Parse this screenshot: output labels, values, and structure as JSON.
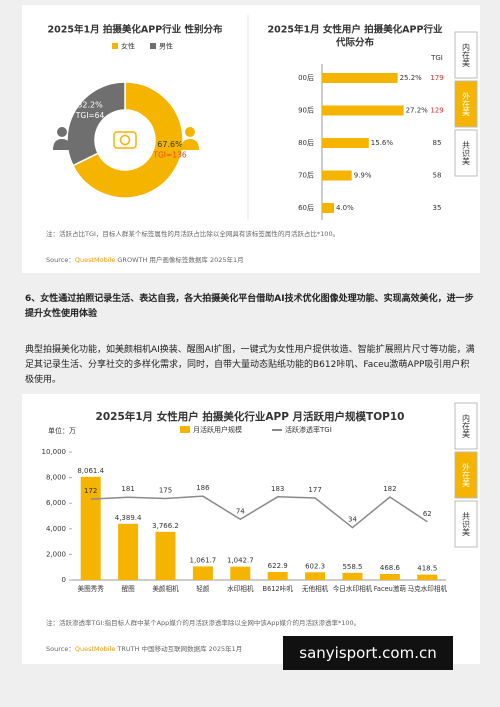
{
  "chart_data": [
    {
      "type": "pie",
      "title": "2025年1月  拍摄美化APP行业  性别分布",
      "categories": [
        "女性",
        "男性"
      ],
      "values": [
        67.6,
        32.2
      ],
      "value_labels": [
        "67.6%",
        "32.2%"
      ],
      "annotations": [
        "TGI=136",
        "TGI=64"
      ],
      "colors": [
        "#f5b400",
        "#6f6f6f"
      ],
      "note": "注：活跃占比TGI，目标人群某个标签属性的月活跃占比除以全网具有该标签属性的月活跃占比*100。",
      "source": {
        "label": "Source：",
        "brand": "QuestMobile",
        "text": " GROWTH 用户画像标签数据库 2025年1月"
      }
    },
    {
      "type": "hbar",
      "title": [
        "2025年1月  女性用户 拍摄美化APP行业",
        "代际分布"
      ],
      "categories": [
        "00后",
        "90后",
        "80后",
        "70后",
        "60后"
      ],
      "values": [
        25.2,
        27.2,
        15.6,
        9.9,
        4.0
      ],
      "value_labels": [
        "25.2%",
        "27.2%",
        "15.6%",
        "9.9%",
        "4.0%"
      ],
      "color": "#f5b400",
      "xlim": [
        0,
        30
      ],
      "tgi_header": "TGI",
      "tgi": [
        179,
        129,
        85,
        58,
        35
      ],
      "tgi_colors": [
        "#e02828",
        "#e02828",
        "#333333",
        "#333333",
        "#333333"
      ]
    },
    {
      "type": "bar_line",
      "title": "2025年1月  女性用户  拍摄美化行业APP  月活跃用户规模TOP10",
      "unit": "单位：万",
      "categories": [
        "美图秀秀",
        "醒图",
        "美颜相机",
        "轻颜",
        "水印相机",
        "B612咔叽",
        "无他相机",
        "今日水印相机",
        "Faceu激萌",
        "马克水印相机"
      ],
      "series": [
        {
          "name": "月活跃用户规模",
          "color": "#f5b400",
          "values": [
            8061.4,
            4389.4,
            3766.2,
            1061.7,
            1042.7,
            622.9,
            602.3,
            558.5,
            468.6,
            418.5
          ],
          "value_labels": [
            "8,061.4",
            "4,389.4",
            "3,766.2",
            "1,061.7",
            "1,042.7",
            "622.9",
            "602.3",
            "558.5",
            "468.6",
            "418.5"
          ]
        },
        {
          "name": "活跃渗透率TGI",
          "color": "#8a8a8a",
          "axis": "y2",
          "values": [
            172,
            181,
            175,
            186,
            74,
            183,
            177,
            34,
            182,
            62
          ]
        }
      ],
      "ylim": [
        0,
        10000
      ],
      "yticks": [
        0,
        {
          "value": 2000,
          "label": "2,000"
        },
        {
          "value": 4000,
          "label": "4,000"
        },
        {
          "value": 6000,
          "label": "6,000"
        },
        {
          "value": 8000,
          "label": "8,000"
        },
        {
          "value": 10000,
          "label": "10,000"
        }
      ],
      "y2lim": [
        -220,
        400
      ],
      "grid": false,
      "note": "注：活跃渗透率TGI:指目标人群中某个App媒介的月活跃渗透率除以全网中该App媒介的月活跃渗透率*100。",
      "source": {
        "label": "Source：",
        "brand": "QuestMobile",
        "text": " TRUTH 中国移动互联网数据库 2025年1月"
      }
    }
  ],
  "side_tabs": [
    "内在美",
    "外在美",
    "共识美"
  ],
  "section": {
    "heading": "6、女性通过拍照记录生活、表达自我，各大拍摄美化平台借助AI技术优化图像处理功能、实现高效美化，进一步提升女性使用体验",
    "paragraph": "典型拍摄美化功能，如美颜相机AI换装、醒图AI扩图，一键式为女性用户提供妆造、智能扩展照片尺寸等功能，满足其记录生活、分享社交的多样化需求，同时，自带大量动态贴纸功能的B612咔叽、Faceu激萌APP吸引用户积极使用。"
  },
  "watermark": "sanyisport.com.cn"
}
